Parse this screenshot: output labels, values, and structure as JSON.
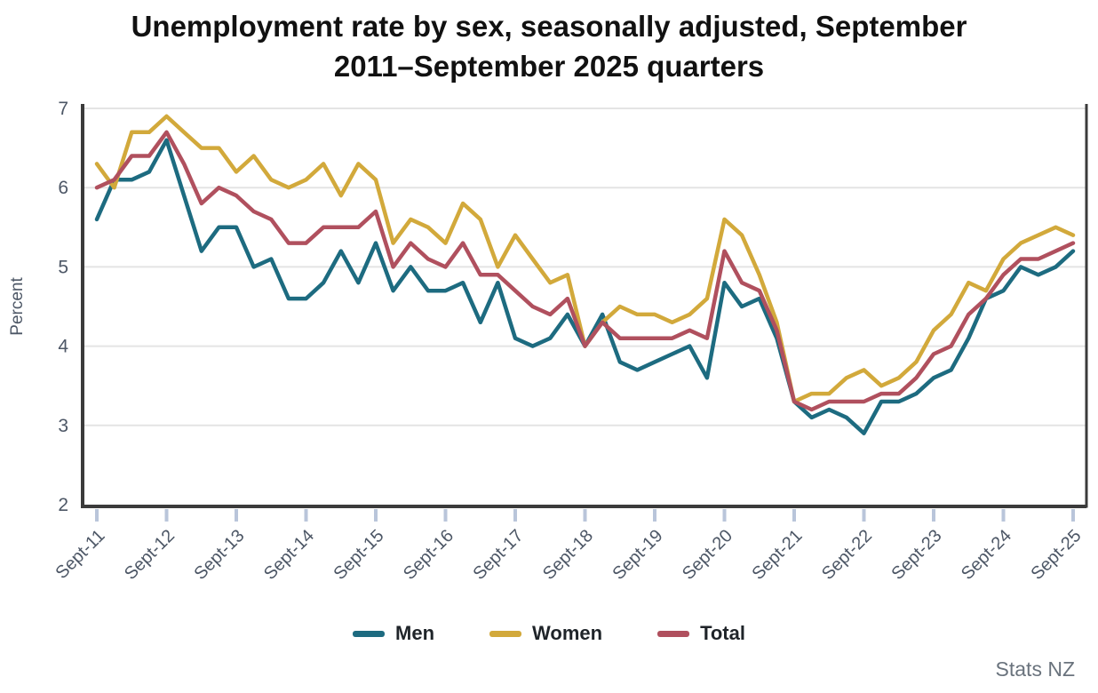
{
  "chart_data": {
    "type": "line",
    "title": "Unemployment rate by sex, seasonally adjusted, September 2011–September 2025 quarters",
    "ylabel": "Percent",
    "xlabel": "",
    "ylim": [
      2,
      7
    ],
    "yticks": [
      2,
      3,
      4,
      5,
      6,
      7
    ],
    "x_tick_labels": [
      "Sept-11",
      "Sept-12",
      "Sept-13",
      "Sept-14",
      "Sept-15",
      "Sept-16",
      "Sept-17",
      "Sept-18",
      "Sept-19",
      "Sept-20",
      "Sept-21",
      "Sept-22",
      "Sept-23",
      "Sept-24",
      "Sept-25"
    ],
    "x_frequency": "quarterly",
    "points_per_year": 4,
    "n_points": 57,
    "x_start": "Sept-11",
    "x_end": "Sept-25",
    "grid": "horizontal",
    "legend_position": "bottom",
    "series": [
      {
        "name": "Men",
        "color": "#1d6b80",
        "values": [
          5.6,
          6.1,
          6.1,
          6.2,
          6.6,
          5.9,
          5.2,
          5.5,
          5.5,
          5.0,
          5.1,
          4.6,
          4.6,
          4.8,
          5.2,
          4.8,
          5.3,
          4.7,
          5.0,
          4.7,
          4.7,
          4.8,
          4.3,
          4.8,
          4.1,
          4.0,
          4.1,
          4.4,
          4.0,
          4.4,
          3.8,
          3.7,
          3.8,
          3.9,
          4.0,
          3.6,
          4.8,
          4.5,
          4.6,
          4.1,
          3.3,
          3.1,
          3.2,
          3.1,
          2.9,
          3.3,
          3.3,
          3.4,
          3.6,
          3.7,
          4.1,
          4.6,
          4.7,
          5.0,
          4.9,
          5.0,
          5.2
        ]
      },
      {
        "name": "Women",
        "color": "#d2a93b",
        "values": [
          6.3,
          6.0,
          6.7,
          6.7,
          6.9,
          6.7,
          6.5,
          6.5,
          6.2,
          6.4,
          6.1,
          6.0,
          6.1,
          6.3,
          5.9,
          6.3,
          6.1,
          5.3,
          5.6,
          5.5,
          5.3,
          5.8,
          5.6,
          5.0,
          5.4,
          5.1,
          4.8,
          4.9,
          4.0,
          4.3,
          4.5,
          4.4,
          4.4,
          4.3,
          4.4,
          4.6,
          5.6,
          5.4,
          4.9,
          4.3,
          3.3,
          3.4,
          3.4,
          3.6,
          3.7,
          3.5,
          3.6,
          3.8,
          4.2,
          4.4,
          4.8,
          4.7,
          5.1,
          5.3,
          5.4,
          5.5,
          5.4
        ]
      },
      {
        "name": "Total",
        "color": "#b0505e",
        "values": [
          6.0,
          6.1,
          6.4,
          6.4,
          6.7,
          6.3,
          5.8,
          6.0,
          5.9,
          5.7,
          5.6,
          5.3,
          5.3,
          5.5,
          5.5,
          5.5,
          5.7,
          5.0,
          5.3,
          5.1,
          5.0,
          5.3,
          4.9,
          4.9,
          4.7,
          4.5,
          4.4,
          4.6,
          4.0,
          4.3,
          4.1,
          4.1,
          4.1,
          4.1,
          4.2,
          4.1,
          5.2,
          4.8,
          4.7,
          4.2,
          3.3,
          3.2,
          3.3,
          3.3,
          3.3,
          3.4,
          3.4,
          3.6,
          3.9,
          4.0,
          4.4,
          4.6,
          4.9,
          5.1,
          5.1,
          5.2,
          5.3
        ]
      }
    ]
  },
  "footer": {
    "source": "Stats NZ"
  }
}
